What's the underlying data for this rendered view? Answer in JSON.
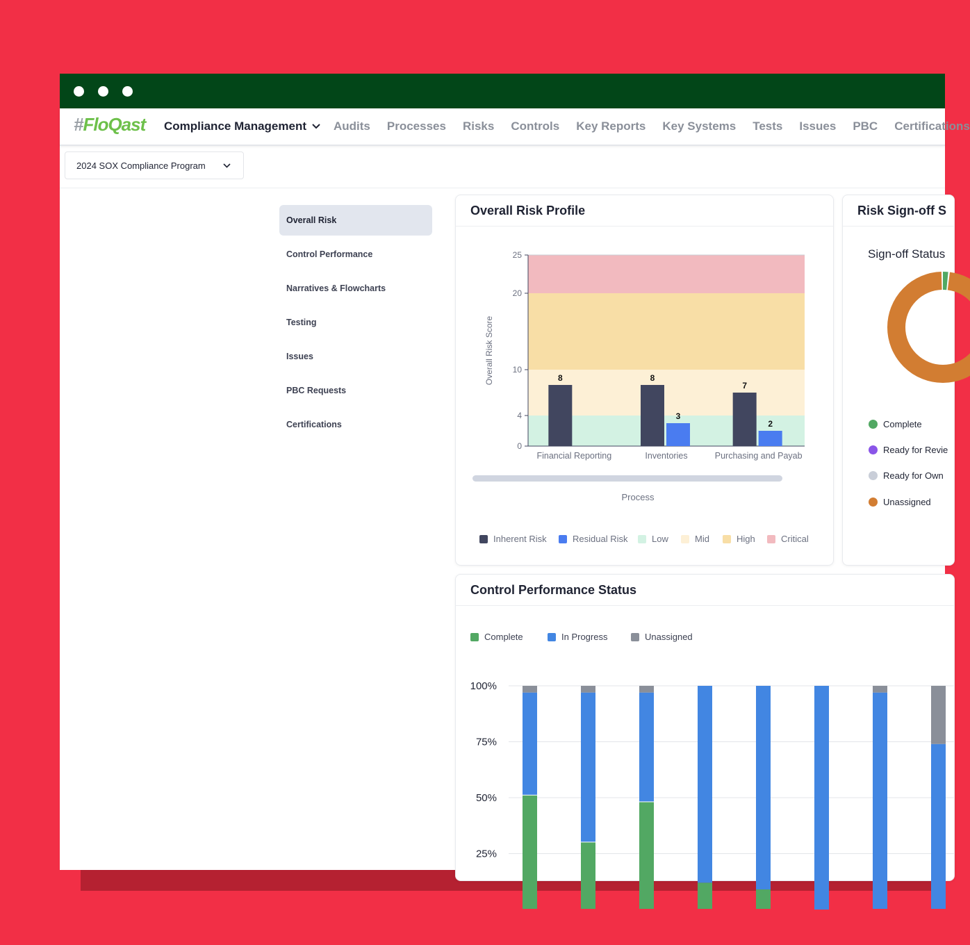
{
  "app": {
    "logo": "FloQast",
    "module": "Compliance Management",
    "nav": [
      "Audits",
      "Processes",
      "Risks",
      "Controls",
      "Key Reports",
      "Key Systems",
      "Tests",
      "Issues",
      "PBC",
      "Certifications"
    ]
  },
  "program_selector": {
    "value": "2024 SOX Compliance Program"
  },
  "sidebar": {
    "items": [
      "Overall Risk",
      "Control Performance",
      "Narratives & Flowcharts",
      "Testing",
      "Issues",
      "PBC Requests",
      "Certifications"
    ],
    "active": "Overall Risk"
  },
  "risk_profile": {
    "title": "Overall Risk Profile",
    "legend": [
      "Inherent Risk",
      "Residual Risk",
      "Low",
      "Mid",
      "High",
      "Critical"
    ]
  },
  "signoff": {
    "title": "Risk Sign-off S",
    "subtitle": "Sign-off Status",
    "legend": [
      "Complete",
      "Ready for Revie",
      "Ready for Own",
      "Unassigned"
    ]
  },
  "control_perf": {
    "title": "Control Performance Status",
    "legend": [
      "Complete",
      "In Progress",
      "Unassigned"
    ]
  },
  "colors": {
    "titlebar": "#024618",
    "brand_green": "#6dc04a",
    "inherent": "#41465f",
    "residual": "#4a7cf0",
    "low": "#d3f2e3",
    "mid": "#fdf0d6",
    "high": "#f8dea6",
    "critical": "#f2babf",
    "complete": "#52a863",
    "in_progress": "#4286e2",
    "unassigned": "#8a8f99",
    "signoff_complete": "#52a863",
    "signoff_review": "#8a55e8",
    "signoff_owner": "#c9ced8",
    "signoff_unassigned": "#d27d32"
  },
  "chart_data": [
    {
      "type": "bar",
      "title": "Overall Risk Profile",
      "xlabel": "Process",
      "ylabel": "Overall Risk Score",
      "categories": [
        "Financial Reporting",
        "Inventories",
        "Purchasing and Payab"
      ],
      "series": [
        {
          "name": "Inherent Risk",
          "values": [
            8,
            8,
            7
          ]
        },
        {
          "name": "Residual Risk",
          "values": [
            null,
            3,
            2
          ]
        }
      ],
      "bands": [
        {
          "name": "Low",
          "from": 0,
          "to": 4
        },
        {
          "name": "Mid",
          "from": 4,
          "to": 10
        },
        {
          "name": "High",
          "from": 10,
          "to": 20
        },
        {
          "name": "Critical",
          "from": 20,
          "to": 25
        }
      ],
      "yticks": [
        0,
        4,
        10,
        20,
        25
      ],
      "ylim": [
        0,
        25
      ],
      "legend": "bottom"
    },
    {
      "type": "pie",
      "title": "Sign-off Status",
      "labels": [
        "Complete",
        "Ready for Revie",
        "Ready for Own",
        "Unassigned"
      ],
      "values": [
        2,
        0,
        0,
        98
      ]
    },
    {
      "type": "bar",
      "title": "Control Performance Status",
      "stacked": true,
      "yticks": [
        "100%",
        "75%",
        "50%",
        "25%"
      ],
      "ylim": [
        0,
        100
      ],
      "series": [
        {
          "name": "Complete",
          "values": [
            51,
            30,
            48,
            12,
            9,
            0,
            0,
            0
          ]
        },
        {
          "name": "In Progress",
          "values": [
            46,
            67,
            49,
            88,
            91,
            100,
            97,
            74
          ]
        },
        {
          "name": "Unassigned",
          "values": [
            3,
            3,
            3,
            0,
            0,
            0,
            3,
            26
          ]
        }
      ],
      "legend": "top"
    }
  ]
}
